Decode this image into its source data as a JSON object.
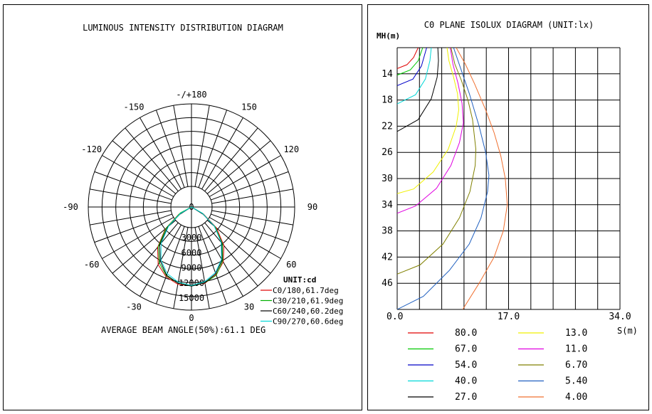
{
  "chart_data": [
    {
      "type": "polar",
      "title": "LUMINOUS INTENSITY DISTRIBUTION DIAGRAM",
      "angle_labels": [
        {
          "angle": 180,
          "text": "-/+180"
        },
        {
          "angle": 150,
          "text": "150"
        },
        {
          "angle": 120,
          "text": "120"
        },
        {
          "angle": 90,
          "text": "90"
        },
        {
          "angle": 60,
          "text": "60"
        },
        {
          "angle": 30,
          "text": "30"
        },
        {
          "angle": 0,
          "text": "0"
        },
        {
          "angle": -30,
          "text": "-30"
        },
        {
          "angle": -60,
          "text": "-60"
        },
        {
          "angle": -90,
          "text": "-90"
        },
        {
          "angle": -120,
          "text": "-120"
        },
        {
          "angle": -150,
          "text": "-150"
        }
      ],
      "radial_ticks": [
        "0",
        "3000",
        "6000",
        "9000",
        "12000",
        "15000"
      ],
      "r_max": 15000,
      "unit_label": "UNIT:cd",
      "footer": "AVERAGE BEAM ANGLE(50%):61.1 DEG",
      "series": [
        {
          "name": "C0/180,61.7deg",
          "color": "#e00000",
          "points": [
            [
              -60,
              2200
            ],
            [
              -50,
              5800
            ],
            [
              -40,
              9200
            ],
            [
              -30,
              11800
            ],
            [
              -20,
              13200
            ],
            [
              -10,
              14000
            ],
            [
              0,
              14000
            ],
            [
              10,
              13800
            ],
            [
              20,
              12800
            ],
            [
              30,
              11200
            ],
            [
              40,
              8800
            ],
            [
              50,
              5500
            ],
            [
              60,
              2000
            ]
          ]
        },
        {
          "name": "C30/210,61.9deg",
          "color": "#00b000",
          "points": [
            [
              -62,
              1800
            ],
            [
              -50,
              5600
            ],
            [
              -40,
              9000
            ],
            [
              -30,
              11400
            ],
            [
              -20,
              13000
            ],
            [
              -10,
              13800
            ],
            [
              0,
              14100
            ],
            [
              10,
              13700
            ],
            [
              20,
              12900
            ],
            [
              30,
              11000
            ],
            [
              40,
              8400
            ],
            [
              50,
              5200
            ],
            [
              60,
              1800
            ]
          ]
        },
        {
          "name": "C60/240,60.2deg",
          "color": "#000000",
          "points": [
            [
              -58,
              2000
            ],
            [
              -50,
              5200
            ],
            [
              -40,
              8600
            ],
            [
              -30,
              11000
            ],
            [
              -20,
              12900
            ],
            [
              -10,
              13800
            ],
            [
              0,
              14100
            ],
            [
              10,
              13700
            ],
            [
              20,
              12600
            ],
            [
              30,
              10800
            ],
            [
              40,
              8200
            ],
            [
              50,
              5000
            ],
            [
              58,
              2000
            ]
          ]
        },
        {
          "name": "C90/270,60.6deg",
          "color": "#00d8d8",
          "points": [
            [
              -60,
              1800
            ],
            [
              -50,
              5000
            ],
            [
              -40,
              8200
            ],
            [
              -30,
              10800
            ],
            [
              -20,
              12600
            ],
            [
              -10,
              13600
            ],
            [
              0,
              14000
            ],
            [
              10,
              13500
            ],
            [
              20,
              12400
            ],
            [
              30,
              10600
            ],
            [
              40,
              8000
            ],
            [
              50,
              5000
            ],
            [
              60,
              1800
            ]
          ]
        }
      ]
    },
    {
      "type": "line",
      "title": "C0 PLANE ISOLUX DIAGRAM (UNIT:lx)",
      "ylabel": "MH(m)",
      "xlabel": "S(m)",
      "xlim": [
        0,
        34
      ],
      "ylim": [
        10,
        50
      ],
      "x_ticks": [
        "0.0",
        "17.0",
        "34.0"
      ],
      "y_ticks": [
        {
          "v": 14,
          "t": "14"
        },
        {
          "v": 18,
          "t": "18"
        },
        {
          "v": 22,
          "t": "22"
        },
        {
          "v": 26,
          "t": "26"
        },
        {
          "v": 30,
          "t": "30"
        },
        {
          "v": 34,
          "t": "34"
        },
        {
          "v": 38,
          "t": "38"
        },
        {
          "v": 42,
          "t": "42"
        },
        {
          "v": 46,
          "t": "46"
        }
      ],
      "grid": true,
      "series": [
        {
          "name": "80.0",
          "color": "#e00000",
          "x": [
            0,
            1.5,
            2.5,
            3.2
          ],
          "y": [
            13.2,
            12.6,
            11.5,
            10
          ]
        },
        {
          "name": "67.0",
          "color": "#00c800",
          "x": [
            0,
            2.0,
            3.2,
            3.9
          ],
          "y": [
            14.2,
            13.4,
            12.0,
            10
          ]
        },
        {
          "name": "54.0",
          "color": "#0000c8",
          "x": [
            0,
            2.4,
            3.7,
            4.5
          ],
          "y": [
            15.8,
            14.8,
            12.8,
            10
          ]
        },
        {
          "name": "40.0",
          "color": "#00d8d8",
          "x": [
            0,
            2.8,
            4.3,
            5.0,
            5.2
          ],
          "y": [
            18.6,
            17.2,
            14.8,
            12.0,
            10
          ]
        },
        {
          "name": "27.0",
          "color": "#000000",
          "x": [
            0,
            3.2,
            5.2,
            6.1,
            6.3,
            6.2
          ],
          "y": [
            22.8,
            21.0,
            17.8,
            14.5,
            12.0,
            10
          ]
        },
        {
          "name": "13.0",
          "color": "#f0f000",
          "x": [
            0,
            2.5,
            5.5,
            7.8,
            9.0,
            9.4,
            9.2,
            8.6,
            7.9,
            7.6
          ],
          "y": [
            32.3,
            31.6,
            29.0,
            25.5,
            22.0,
            19.5,
            17.0,
            14.5,
            12.0,
            10
          ]
        },
        {
          "name": "11.0",
          "color": "#e000e0",
          "x": [
            0,
            2.8,
            6.0,
            8.2,
            9.5,
            10.1,
            9.9,
            9.3,
            8.5,
            8.1
          ],
          "y": [
            35.3,
            34.2,
            31.5,
            28.0,
            24.5,
            21.5,
            18.5,
            15.5,
            12.5,
            10
          ]
        },
        {
          "name": "6.70",
          "color": "#808000",
          "x": [
            0,
            3.5,
            7.0,
            9.5,
            11.1,
            11.9,
            12.0,
            11.5,
            10.8,
            9.8,
            8.8,
            8.2
          ],
          "y": [
            44.6,
            43.2,
            40.0,
            36.0,
            32.0,
            28.0,
            25.5,
            21.0,
            18.0,
            15.0,
            12.5,
            10
          ]
        },
        {
          "name": "5.40",
          "color": "#2060c0",
          "x": [
            0,
            4.0,
            8.0,
            11.0,
            12.8,
            13.8,
            14.0,
            13.5,
            12.5,
            11.0,
            9.8,
            8.6
          ],
          "y": [
            50.0,
            48.0,
            44.0,
            40.0,
            36.0,
            32.0,
            29.5,
            26.0,
            22.0,
            17.0,
            13.5,
            10
          ]
        },
        {
          "name": "4.00",
          "color": "#f07030",
          "x": [
            10.0,
            12.5,
            14.8,
            16.2,
            16.8,
            16.5,
            15.8,
            14.8,
            13.5,
            11.8,
            10.4,
            9.0
          ],
          "y": [
            50.0,
            46.0,
            42.0,
            38.0,
            34.0,
            30.0,
            26.5,
            23.0,
            19.5,
            15.5,
            12.5,
            10
          ]
        }
      ]
    }
  ]
}
